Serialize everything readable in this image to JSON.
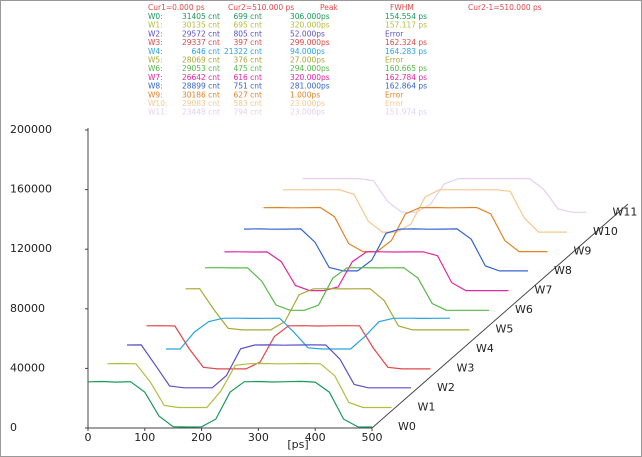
{
  "stats": {
    "header": [
      "Cur1=0.000 ps",
      "Cur2=510.000 ps",
      "Peak",
      "FWHM",
      "Cur2-1=510.000 ps"
    ],
    "rows": [
      [
        "W0:",
        "31405 cnt",
        "699 cnt",
        "306.000ps",
        "154.554 ps"
      ],
      [
        "W1:",
        "30135 cnt",
        "695 cnt",
        "320.000ps",
        "157.117 ps"
      ],
      [
        "W2:",
        "29572 cnt",
        "805 cnt",
        "52.000ps",
        "Error"
      ],
      [
        "W3:",
        "29337 cnt",
        "397 cnt",
        "299.000ps",
        "162.324 ps"
      ],
      [
        "W4:",
        "646 cnt",
        "21322 cnt",
        "94.000ps",
        "164.283 ps"
      ],
      [
        "W5:",
        "28069 cnt",
        "376 cnt",
        "27.000ps",
        "Error"
      ],
      [
        "W6:",
        "29053 cnt",
        "475 cnt",
        "294.000ps",
        "160.665 ps"
      ],
      [
        "W7:",
        "26642 cnt",
        "616 cnt",
        "320.000ps",
        "162.784 ps"
      ],
      [
        "W8:",
        "28899 cnt",
        "751 cnt",
        "281.000ps",
        "162.864 ps"
      ],
      [
        "W9:",
        "30186 cnt",
        "627 cnt",
        "1.000ps",
        "Error"
      ],
      [
        "W10:",
        "29083 cnt",
        "583 cnt",
        "23.000ps",
        "Error"
      ],
      [
        "W11:",
        "23448 cnt",
        "794 cnt",
        "23.000ps",
        "151.974 ps"
      ]
    ]
  },
  "chart_data": {
    "type": "line",
    "x_label": "[ps]",
    "x": [
      0,
      25,
      50,
      75,
      100,
      125,
      150,
      175,
      200,
      225,
      250,
      275,
      300,
      325,
      350,
      375,
      400,
      425,
      450,
      475,
      500
    ],
    "xlim": [
      0,
      500
    ],
    "xticks": [
      0,
      100,
      200,
      300,
      400,
      500
    ],
    "ylim": [
      0,
      200000
    ],
    "yticks": [
      0,
      40000,
      80000,
      120000,
      160000,
      200000
    ],
    "series": [
      {
        "name": "W0",
        "color": "#1a9a5a",
        "values": [
          31000,
          31200,
          30800,
          31100,
          24000,
          8000,
          900,
          700,
          800,
          6000,
          24000,
          31000,
          31200,
          30900,
          31100,
          31300,
          30800,
          24000,
          6000,
          800,
          700
        ]
      },
      {
        "name": "W1",
        "color": "#b4bc3c",
        "values": [
          30100,
          30200,
          30000,
          18000,
          2000,
          700,
          695,
          700,
          12000,
          29000,
          30100,
          30200,
          30000,
          30100,
          30200,
          30000,
          22000,
          4000,
          700,
          695,
          690
        ]
      },
      {
        "name": "W2",
        "color": "#5a50c8",
        "values": [
          29500,
          29600,
          16000,
          2000,
          805,
          800,
          810,
          9000,
          27000,
          29500,
          29600,
          29400,
          29500,
          29600,
          29500,
          20000,
          3000,
          805,
          800,
          810,
          805
        ]
      },
      {
        "name": "W3",
        "color": "#e04848",
        "values": [
          29300,
          29400,
          29200,
          14000,
          1500,
          400,
          397,
          400,
          5000,
          22000,
          29300,
          29400,
          29200,
          29300,
          29400,
          29300,
          14000,
          1500,
          400,
          397,
          400
        ]
      },
      {
        "name": "W4",
        "color": "#28a4e0",
        "values": [
          700,
          646,
          12000,
          19000,
          21300,
          21322,
          21200,
          21300,
          21322,
          12000,
          1500,
          646,
          700,
          650,
          9000,
          19000,
          21300,
          21322,
          21200,
          21300,
          21322
        ]
      },
      {
        "name": "W5",
        "color": "#a8a838",
        "values": [
          28000,
          28069,
          14000,
          1500,
          376,
          380,
          376,
          6000,
          24000,
          28000,
          28069,
          27900,
          28000,
          28069,
          20000,
          3000,
          376,
          380,
          376,
          380,
          376
        ]
      },
      {
        "name": "W6",
        "color": "#58b848",
        "values": [
          29000,
          29053,
          28900,
          29000,
          20000,
          4000,
          475,
          480,
          4000,
          22000,
          29000,
          29053,
          28900,
          29000,
          29053,
          22000,
          5000,
          475,
          480,
          475,
          480
        ]
      },
      {
        "name": "W7",
        "color": "#e028a0",
        "values": [
          26600,
          26642,
          26500,
          26600,
          20000,
          4000,
          616,
          620,
          3000,
          20000,
          26600,
          26642,
          26500,
          26600,
          26642,
          24000,
          6000,
          616,
          620,
          616,
          620
        ]
      },
      {
        "name": "W8",
        "color": "#3464d0",
        "values": [
          28800,
          28899,
          28700,
          28800,
          28899,
          20000,
          3000,
          751,
          760,
          8000,
          26000,
          28800,
          28899,
          28700,
          28800,
          28899,
          22000,
          4000,
          751,
          760,
          751
        ]
      },
      {
        "name": "W9",
        "color": "#e08428",
        "values": [
          30100,
          30186,
          30000,
          30100,
          30186,
          24000,
          6000,
          627,
          630,
          8000,
          26000,
          30100,
          30186,
          30000,
          30100,
          30186,
          26000,
          8000,
          627,
          630,
          627
        ]
      },
      {
        "name": "W10",
        "color": "#f4c890",
        "values": [
          29000,
          29083,
          29000,
          29083,
          29000,
          26000,
          8000,
          583,
          590,
          6000,
          24000,
          29000,
          29083,
          29000,
          29083,
          29000,
          28000,
          10000,
          583,
          590,
          583
        ]
      },
      {
        "name": "W11",
        "color": "#e4d0f0",
        "values": [
          23400,
          23448,
          23400,
          23448,
          23400,
          22000,
          8000,
          794,
          800,
          6000,
          20000,
          23400,
          23448,
          23400,
          23448,
          23400,
          23448,
          16000,
          3000,
          794,
          800
        ]
      }
    ]
  }
}
